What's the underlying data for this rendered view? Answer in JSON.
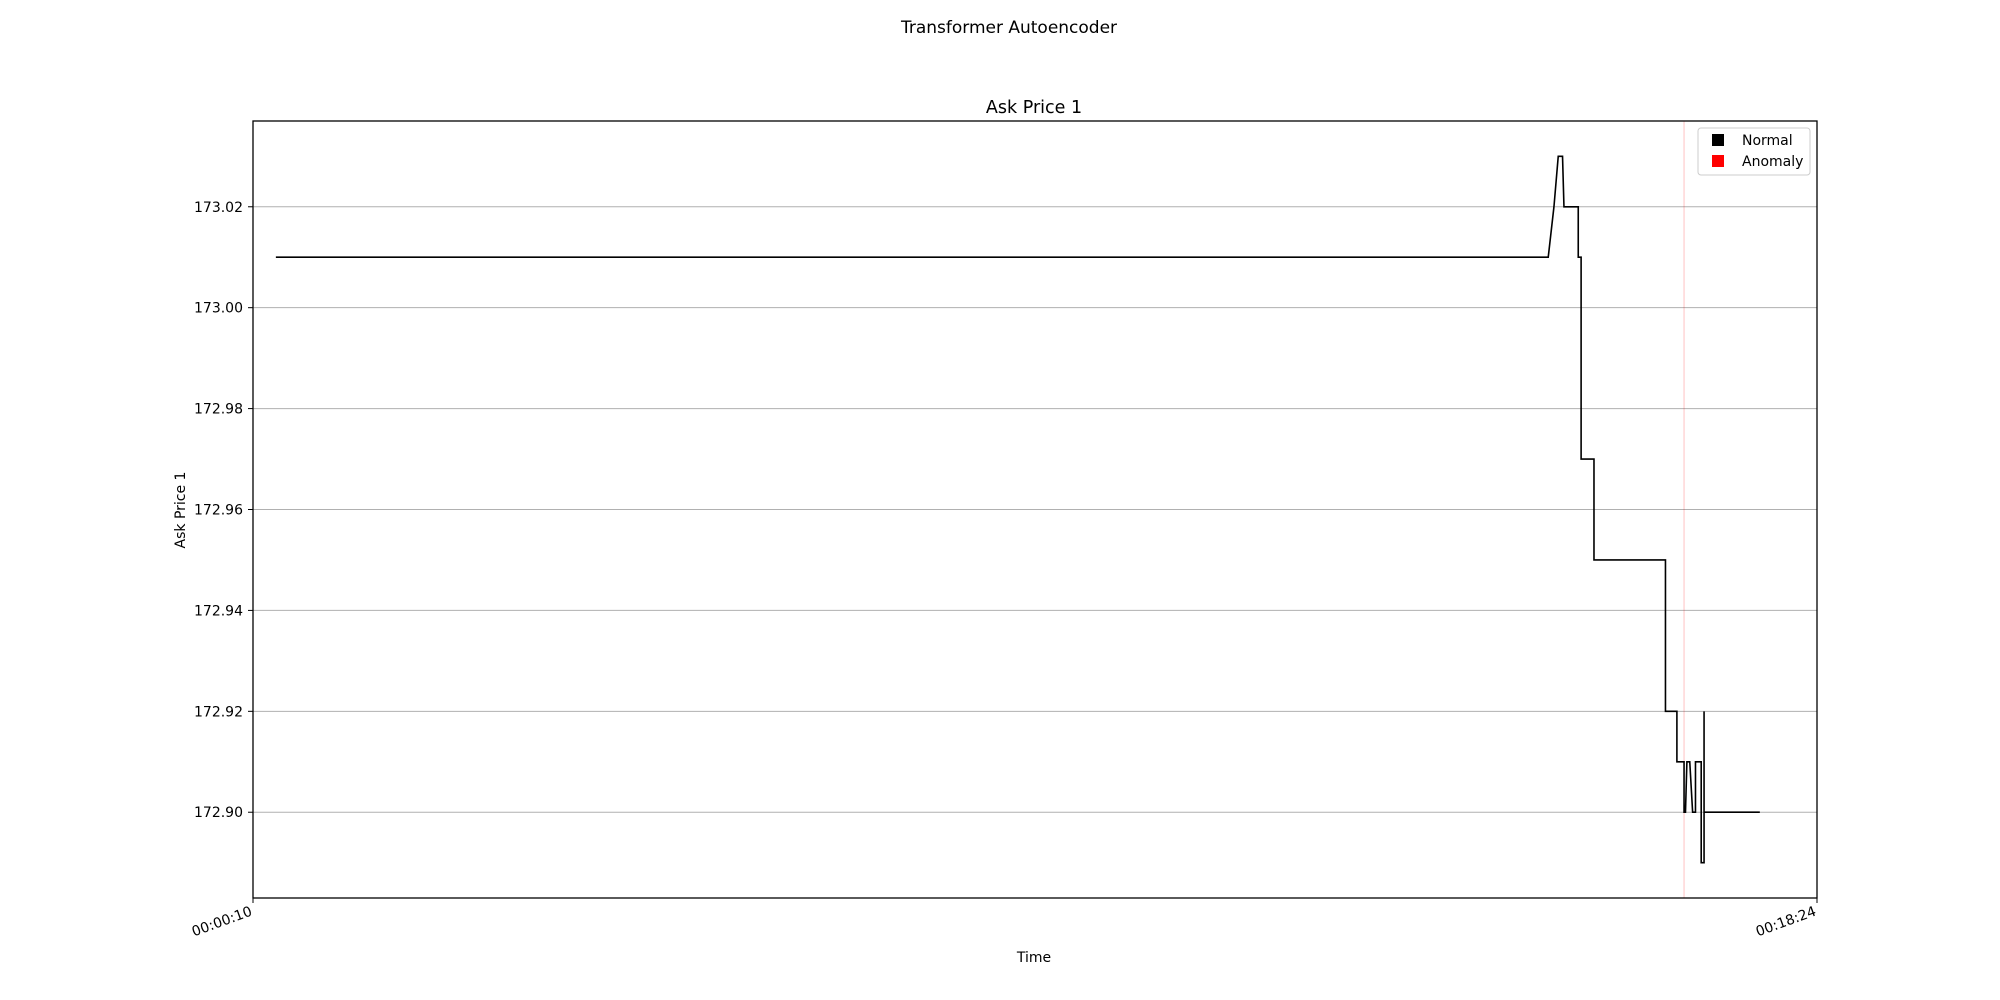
{
  "figure": {
    "suptitle": "Transformer Autoencoder"
  },
  "chart_data": {
    "type": "line",
    "title": "Ask Price 1",
    "xlabel": "Time",
    "ylabel": "Ask Price 1",
    "x_range": [
      "00:00:10",
      "00:18:24"
    ],
    "x_ticks": [
      "00:00:10",
      "00:18:24"
    ],
    "ylim": [
      172.883,
      173.037
    ],
    "y_ticks": [
      172.9,
      172.92,
      172.94,
      172.96,
      172.98,
      173.0,
      173.02
    ],
    "grid": "horizontal",
    "legend": {
      "placement": "upper-right",
      "entries": [
        {
          "label": "Normal",
          "color": "#000000"
        },
        {
          "label": "Anomaly",
          "color": "#ff0000"
        }
      ]
    },
    "anomaly_times": [
      "00:16:51"
    ],
    "series": [
      {
        "color": "#000000",
        "points": [
          [
            "00:00:26",
            173.01
          ],
          [
            "00:15:16",
            173.01
          ],
          [
            "00:15:20",
            173.02
          ],
          [
            "00:15:23",
            173.03
          ],
          [
            "00:15:26",
            173.03
          ],
          [
            "00:15:27",
            173.02
          ],
          [
            "00:15:37",
            173.02
          ],
          [
            "00:15:37",
            173.01
          ],
          [
            "00:15:39",
            173.01
          ],
          [
            "00:15:39",
            172.97
          ],
          [
            "00:15:48",
            172.97
          ],
          [
            "00:15:48",
            172.95
          ],
          [
            "00:16:38",
            172.95
          ],
          [
            "00:16:38",
            172.92
          ],
          [
            "00:16:46",
            172.92
          ],
          [
            "00:16:46",
            172.91
          ],
          [
            "00:16:51",
            172.91
          ],
          [
            "00:16:51",
            172.9
          ],
          [
            "00:16:52",
            172.9
          ],
          [
            "00:16:53",
            172.91
          ],
          [
            "00:16:55",
            172.91
          ],
          [
            "00:16:57",
            172.9
          ],
          [
            "00:16:59",
            172.9
          ],
          [
            "00:16:59",
            172.91
          ],
          [
            "00:17:03",
            172.91
          ],
          [
            "00:17:03",
            172.89
          ],
          [
            "00:17:05",
            172.89
          ],
          [
            "00:17:05",
            172.92
          ],
          [
            "00:17:05",
            172.9
          ],
          [
            "00:17:44",
            172.9
          ]
        ]
      }
    ]
  }
}
